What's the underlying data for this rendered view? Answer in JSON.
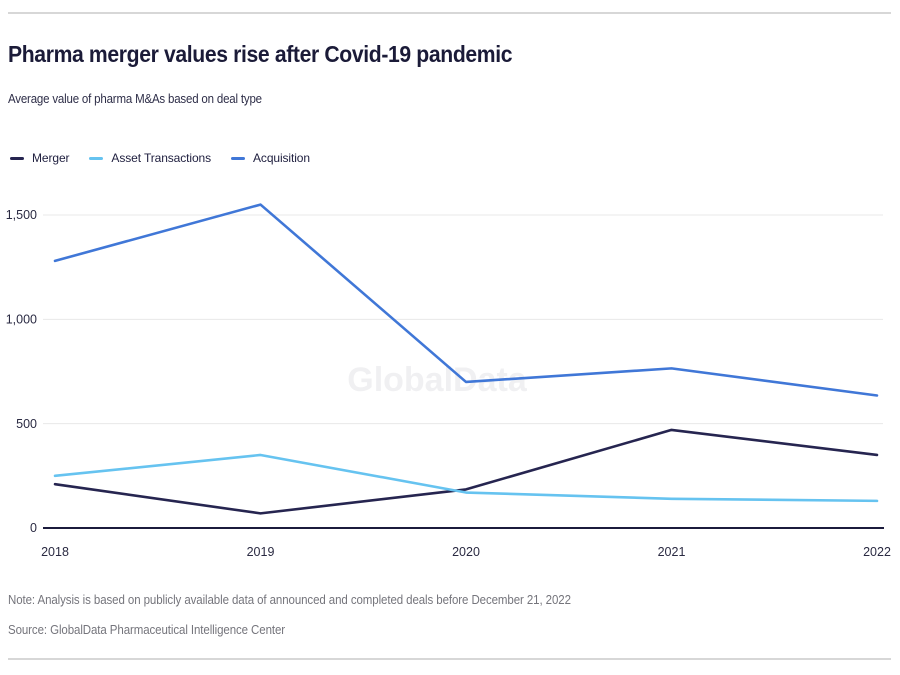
{
  "page": {
    "title": "Pharma merger values rise after Covid-19 pandemic",
    "subtitle": "Average value of pharma M&As based on deal type",
    "note": "Note: Analysis is based on publicly available data of announced and completed deals before December 21, 2022",
    "source": "Source: GlobalData Pharmaceutical Intelligence Center",
    "watermark": "GlobalData"
  },
  "chart_data": {
    "type": "line",
    "title": "Pharma merger values rise after Covid-19 pandemic",
    "subtitle": "Average value of pharma M&As based on deal type",
    "categories": [
      "2018",
      "2019",
      "2020",
      "2021",
      "2022"
    ],
    "series": [
      {
        "name": "Merger",
        "color": "#262550",
        "values": [
          210,
          70,
          185,
          470,
          350
        ]
      },
      {
        "name": "Asset Transactions",
        "color": "#66C3F0",
        "values": [
          250,
          350,
          170,
          140,
          130
        ]
      },
      {
        "name": "Acquisition",
        "color": "#4077D7",
        "values": [
          1280,
          1550,
          700,
          765,
          635
        ]
      }
    ],
    "ylim": [
      0,
      1500
    ],
    "y_ticks": [
      0,
      500,
      1000,
      1500
    ],
    "y_tick_labels": [
      "0",
      "500",
      "1,000",
      "1,500"
    ],
    "grid": "horizontal",
    "grid_color": "#E8E8E8",
    "axis_color": "#1B1B3C",
    "tick_label_color": "#2A2A42",
    "legend_position": "top-left",
    "watermark": "GlobalData",
    "watermark_color": "#F0F0F2"
  }
}
